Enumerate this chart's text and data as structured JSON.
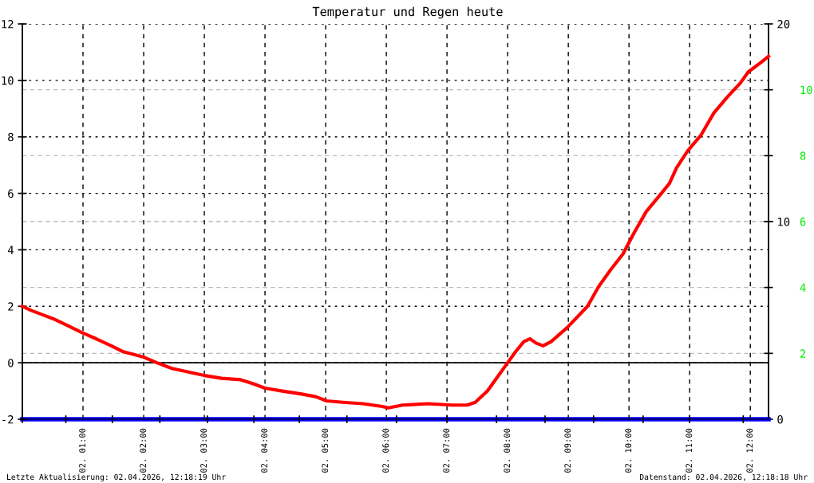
{
  "chart_data": {
    "type": "line",
    "title": "Temperatur und Regen heute",
    "x": [
      "2026-04-02T00:00",
      "2026-04-02T00:09",
      "2026-04-02T00:20",
      "2026-04-02T00:31",
      "2026-04-02T00:43",
      "2026-04-02T01:00",
      "2026-04-02T01:13",
      "2026-04-02T01:28",
      "2026-04-02T01:39",
      "2026-04-02T02:00",
      "2026-04-02T02:13",
      "2026-04-02T02:28",
      "2026-04-02T02:47",
      "2026-04-02T03:00",
      "2026-04-02T03:17",
      "2026-04-02T03:36",
      "2026-04-02T03:49",
      "2026-04-02T04:00",
      "2026-04-02T04:17",
      "2026-04-02T04:35",
      "2026-04-02T04:50",
      "2026-04-02T05:01",
      "2026-04-02T05:17",
      "2026-04-02T05:37",
      "2026-04-02T05:56",
      "2026-04-02T06:02",
      "2026-04-02T06:16",
      "2026-04-02T06:41",
      "2026-04-02T07:05",
      "2026-04-02T07:20",
      "2026-04-02T07:28",
      "2026-04-02T07:40",
      "2026-04-02T07:52",
      "2026-04-02T08:00",
      "2026-04-02T08:08",
      "2026-04-02T08:16",
      "2026-04-02T08:22",
      "2026-04-02T08:28",
      "2026-04-02T08:35",
      "2026-04-02T08:43",
      "2026-04-02T08:59",
      "2026-04-02T09:19",
      "2026-04-02T09:30",
      "2026-04-02T09:42",
      "2026-04-02T09:54",
      "2026-04-02T10:05",
      "2026-04-02T10:17",
      "2026-04-02T10:32",
      "2026-04-02T10:40",
      "2026-04-02T10:47",
      "2026-04-02T10:58",
      "2026-04-02T11:11",
      "2026-04-02T11:24",
      "2026-04-02T11:37",
      "2026-04-02T11:50",
      "2026-04-02T11:58",
      "2026-04-02T12:11",
      "2026-04-02T12:18"
    ],
    "series": [
      {
        "color": "#ff0000",
        "values": [
          2.0,
          1.85,
          1.7,
          1.55,
          1.35,
          1.05,
          0.85,
          0.6,
          0.4,
          0.2,
          0.0,
          -0.2,
          -0.35,
          -0.45,
          -0.55,
          -0.6,
          -0.75,
          -0.9,
          -1.0,
          -1.1,
          -1.2,
          -1.35,
          -1.4,
          -1.45,
          -1.55,
          -1.6,
          -1.5,
          -1.45,
          -1.5,
          -1.5,
          -1.4,
          -1.0,
          -0.4,
          0.0,
          0.4,
          0.75,
          0.85,
          0.7,
          0.6,
          0.75,
          1.25,
          2.0,
          2.7,
          3.3,
          3.85,
          4.6,
          5.35,
          6.0,
          6.35,
          6.9,
          7.5,
          8.05,
          8.85,
          9.4,
          9.9,
          10.3,
          10.65,
          10.85
        ]
      },
      {
        "color": "#0000ff",
        "axis": "y2",
        "x": [
          "2026-04-02T00:00",
          "2026-04-02T12:18"
        ],
        "values": [
          0,
          0
        ]
      }
    ],
    "xlim": [
      "2026-04-02T00:00",
      "2026-04-02T12:18"
    ],
    "xticks": [
      {
        "value": "2026-04-02T01:00",
        "label": "02. 01:00"
      },
      {
        "value": "2026-04-02T02:00",
        "label": "02. 02:00"
      },
      {
        "value": "2026-04-02T03:00",
        "label": "02. 03:00"
      },
      {
        "value": "2026-04-02T04:00",
        "label": "02. 04:00"
      },
      {
        "value": "2026-04-02T05:00",
        "label": "02. 05:00"
      },
      {
        "value": "2026-04-02T06:00",
        "label": "02. 06:00"
      },
      {
        "value": "2026-04-02T07:00",
        "label": "02. 07:00"
      },
      {
        "value": "2026-04-02T08:00",
        "label": "02. 08:00"
      },
      {
        "value": "2026-04-02T09:00",
        "label": "02. 09:00"
      },
      {
        "value": "2026-04-02T10:00",
        "label": "02. 10:00"
      },
      {
        "value": "2026-04-02T11:00",
        "label": "02. 11:00"
      },
      {
        "value": "2026-04-02T12:00",
        "label": "02. 12:00"
      },
      {
        "value": "2026-04-02T00:00",
        "label": null
      },
      {
        "value": "2026-04-02T00:43",
        "label": null
      },
      {
        "value": "2026-04-02T01:29",
        "label": null
      },
      {
        "value": "2026-04-02T02:16",
        "label": null
      },
      {
        "value": "2026-04-02T03:03",
        "label": null
      },
      {
        "value": "2026-04-02T03:49",
        "label": null
      },
      {
        "value": "2026-04-02T04:34",
        "label": null
      },
      {
        "value": "2026-04-02T05:21",
        "label": null
      },
      {
        "value": "2026-04-02T06:10",
        "label": null
      },
      {
        "value": "2026-04-02T07:00",
        "label": null
      },
      {
        "value": "2026-04-02T07:49",
        "label": null
      },
      {
        "value": "2026-04-02T08:37",
        "label": null
      },
      {
        "value": "2026-04-02T09:25",
        "label": null
      },
      {
        "value": "2026-04-02T10:14",
        "label": null
      },
      {
        "value": "2026-04-02T11:00",
        "label": null
      },
      {
        "value": "2026-04-02T11:53",
        "label": null
      }
    ],
    "ylim": [
      -2,
      12
    ],
    "yticks": [
      -2,
      0,
      2,
      4,
      6,
      8,
      10,
      12
    ],
    "y2lim": [
      0,
      20
    ],
    "y2ticks": [
      0,
      10,
      20
    ],
    "y3lim": [
      0,
      12
    ],
    "y3ticks": [
      2,
      4,
      6,
      8,
      10
    ],
    "ref_lines": [
      {
        "axis": "y",
        "value": 0,
        "color": "#000000",
        "line_style": "solid"
      }
    ],
    "grid": true,
    "legend": false,
    "marker": "none",
    "line_style": "solid",
    "annotations": [
      "Letzte Aktualisierung: 02.04.2026, 12:18:19 Uhr",
      "Datenstand: 02.04.2026, 12:18:18 Uhr"
    ]
  }
}
